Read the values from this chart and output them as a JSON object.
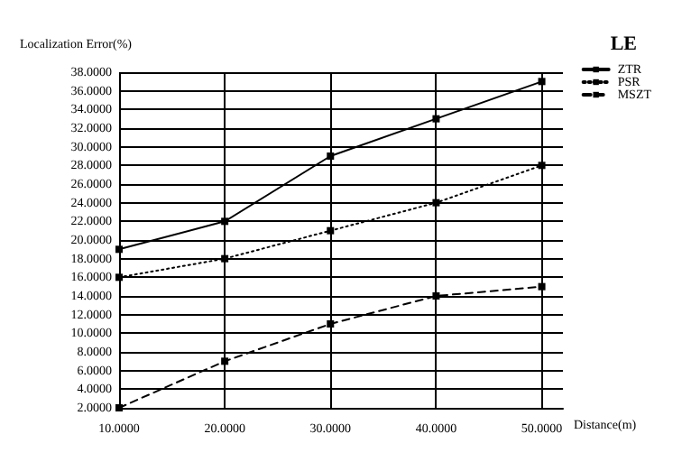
{
  "chart_data": {
    "type": "line",
    "title": "LE",
    "xlabel": "Distance(m)",
    "ylabel": "Localization Error(%)",
    "x": [
      10,
      20,
      30,
      40,
      50
    ],
    "series": [
      {
        "name": "ZTR",
        "color": "#000000",
        "line_style": "solid",
        "values": [
          19,
          22,
          29,
          33,
          37
        ]
      },
      {
        "name": "PSR",
        "color": "#000000",
        "line_style": "dotted",
        "values": [
          16,
          18,
          21,
          24,
          28
        ]
      },
      {
        "name": "MSZT",
        "color": "#000000",
        "line_style": "dashed",
        "values": [
          2,
          7,
          11,
          14,
          15
        ]
      }
    ],
    "xlim": [
      10,
      52
    ],
    "xticks": [
      {
        "value": 10,
        "label": "10.0000"
      },
      {
        "value": 20,
        "label": "20.0000"
      },
      {
        "value": 30,
        "label": "30.0000"
      },
      {
        "value": 40,
        "label": "40.0000"
      },
      {
        "value": 50,
        "label": "50.0000"
      }
    ],
    "ylim": [
      2,
      38
    ],
    "yticks": [
      {
        "value": 2,
        "label": "2.0000"
      },
      {
        "value": 4,
        "label": "4.0000"
      },
      {
        "value": 6,
        "label": "6.0000"
      },
      {
        "value": 8,
        "label": "8.0000"
      },
      {
        "value": 10,
        "label": "10.0000"
      },
      {
        "value": 12,
        "label": "12.0000"
      },
      {
        "value": 14,
        "label": "14.0000"
      },
      {
        "value": 16,
        "label": "16.0000"
      },
      {
        "value": 18,
        "label": "18.0000"
      },
      {
        "value": 20,
        "label": "20.0000"
      },
      {
        "value": 22,
        "label": "22.0000"
      },
      {
        "value": 24,
        "label": "24.0000"
      },
      {
        "value": 26,
        "label": "26.0000"
      },
      {
        "value": 28,
        "label": "28.0000"
      },
      {
        "value": 30,
        "label": "30.0000"
      },
      {
        "value": 32,
        "label": "32.0000"
      },
      {
        "value": 34,
        "label": "34.0000"
      },
      {
        "value": 36,
        "label": "36.0000"
      },
      {
        "value": 38,
        "label": "38.0000"
      }
    ],
    "grid": true,
    "legend": "top right",
    "marker": "square"
  }
}
